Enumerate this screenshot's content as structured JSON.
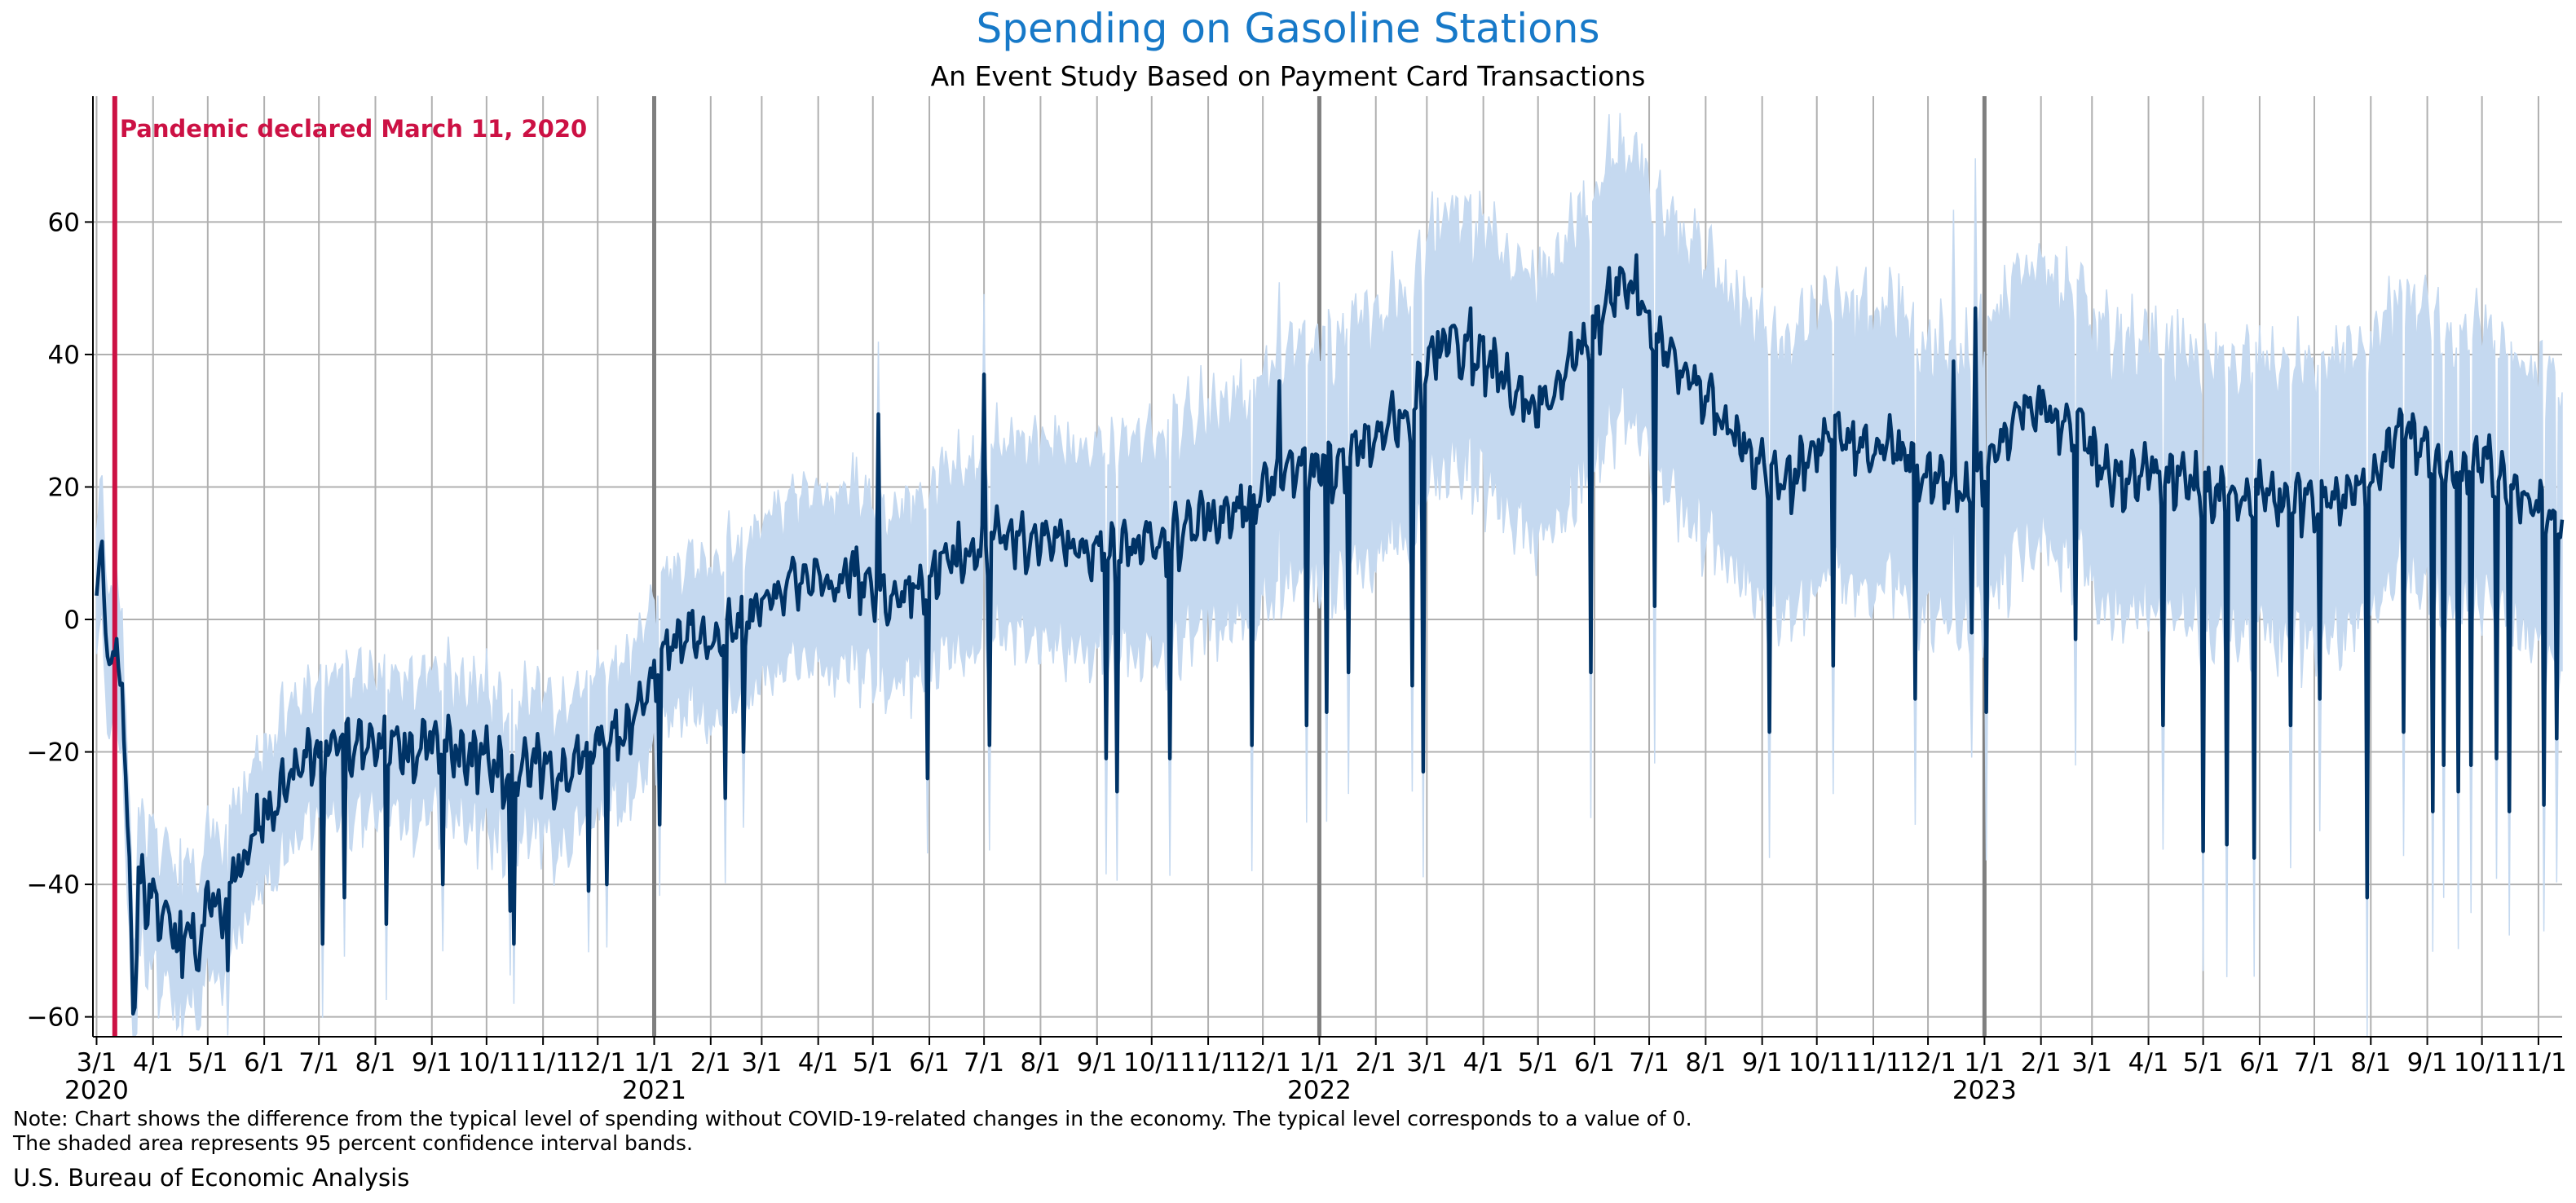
{
  "colors": {
    "title": "#1779c8",
    "line": "#003366",
    "band": "#c5d9f0",
    "event": "#cc1144",
    "grid": "#b0b0b0",
    "year_divider": "#7f7f7f"
  },
  "chart_data": {
    "type": "line",
    "title": "Spending on Gasoline Stations",
    "subtitle": "An Event Study Based on Payment Card Transactions",
    "xlabel": "",
    "ylabel": "",
    "x_range": [
      "2020-02-28",
      "2023-11-14"
    ],
    "ylim": [
      -63,
      79
    ],
    "yticks": [
      "60",
      "40",
      "20",
      "0",
      "−20",
      "−40",
      "−60"
    ],
    "ytick_values": [
      60,
      40,
      20,
      0,
      -20,
      -40,
      -60
    ],
    "xticks": [
      {
        "date": "2020-03-01",
        "label": "3/1",
        "year": "2020"
      },
      {
        "date": "2020-04-01",
        "label": "4/1"
      },
      {
        "date": "2020-05-01",
        "label": "5/1"
      },
      {
        "date": "2020-06-01",
        "label": "6/1"
      },
      {
        "date": "2020-07-01",
        "label": "7/1"
      },
      {
        "date": "2020-08-01",
        "label": "8/1"
      },
      {
        "date": "2020-09-01",
        "label": "9/1"
      },
      {
        "date": "2020-10-01",
        "label": "10/1"
      },
      {
        "date": "2020-11-01",
        "label": "11/1"
      },
      {
        "date": "2020-12-01",
        "label": "12/1"
      },
      {
        "date": "2021-01-01",
        "label": "1/1",
        "year": "2021",
        "divider": true
      },
      {
        "date": "2021-02-01",
        "label": "2/1"
      },
      {
        "date": "2021-03-01",
        "label": "3/1"
      },
      {
        "date": "2021-04-01",
        "label": "4/1"
      },
      {
        "date": "2021-05-01",
        "label": "5/1"
      },
      {
        "date": "2021-06-01",
        "label": "6/1"
      },
      {
        "date": "2021-07-01",
        "label": "7/1"
      },
      {
        "date": "2021-08-01",
        "label": "8/1"
      },
      {
        "date": "2021-09-01",
        "label": "9/1"
      },
      {
        "date": "2021-10-01",
        "label": "10/1"
      },
      {
        "date": "2021-11-01",
        "label": "11/1"
      },
      {
        "date": "2021-12-01",
        "label": "12/1"
      },
      {
        "date": "2022-01-01",
        "label": "1/1",
        "year": "2022",
        "divider": true
      },
      {
        "date": "2022-02-01",
        "label": "2/1"
      },
      {
        "date": "2022-03-01",
        "label": "3/1"
      },
      {
        "date": "2022-04-01",
        "label": "4/1"
      },
      {
        "date": "2022-05-01",
        "label": "5/1"
      },
      {
        "date": "2022-06-01",
        "label": "6/1"
      },
      {
        "date": "2022-07-01",
        "label": "7/1"
      },
      {
        "date": "2022-08-01",
        "label": "8/1"
      },
      {
        "date": "2022-09-01",
        "label": "9/1"
      },
      {
        "date": "2022-10-01",
        "label": "10/1"
      },
      {
        "date": "2022-11-01",
        "label": "11/1"
      },
      {
        "date": "2022-12-01",
        "label": "12/1"
      },
      {
        "date": "2023-01-01",
        "label": "1/1",
        "year": "2023",
        "divider": true
      },
      {
        "date": "2023-02-01",
        "label": "2/1"
      },
      {
        "date": "2023-03-01",
        "label": "3/1"
      },
      {
        "date": "2023-04-01",
        "label": "4/1"
      },
      {
        "date": "2023-05-01",
        "label": "5/1"
      },
      {
        "date": "2023-06-01",
        "label": "6/1"
      },
      {
        "date": "2023-07-01",
        "label": "7/1"
      },
      {
        "date": "2023-08-01",
        "label": "8/1"
      },
      {
        "date": "2023-09-01",
        "label": "9/1"
      },
      {
        "date": "2023-10-01",
        "label": "10/1"
      },
      {
        "date": "2023-11-01",
        "label": "11/1"
      }
    ],
    "event": {
      "date": "2020-03-11",
      "label": "Pandemic declared March 11, 2020"
    },
    "grid": true,
    "series": [
      {
        "kind": "line",
        "points": [
          [
            "2020-03-01",
            6
          ],
          [
            "2020-03-04",
            10
          ],
          [
            "2020-03-06",
            -4
          ],
          [
            "2020-03-09",
            -7
          ],
          [
            "2020-03-12",
            -6
          ],
          [
            "2020-03-15",
            -10
          ],
          [
            "2020-03-17",
            -24
          ],
          [
            "2020-03-19",
            -38
          ],
          [
            "2020-03-21",
            -55
          ],
          [
            "2020-03-22",
            -58
          ],
          [
            "2020-03-24",
            -40
          ],
          [
            "2020-03-27",
            -42
          ],
          [
            "2020-04-01",
            -43
          ],
          [
            "2020-04-05",
            -47
          ],
          [
            "2020-04-10",
            -45
          ],
          [
            "2020-04-15",
            -50
          ],
          [
            "2020-04-20",
            -44
          ],
          [
            "2020-04-25",
            -52
          ],
          [
            "2020-05-01",
            -42
          ],
          [
            "2020-05-08",
            -45
          ],
          [
            "2020-05-15",
            -40
          ],
          [
            "2020-05-22",
            -36
          ],
          [
            "2020-06-01",
            -30
          ],
          [
            "2020-06-10",
            -27
          ],
          [
            "2020-06-20",
            -22
          ],
          [
            "2020-07-01",
            -20
          ],
          [
            "2020-07-10",
            -18
          ],
          [
            "2020-07-20",
            -20
          ],
          [
            "2020-08-01",
            -19
          ],
          [
            "2020-08-10",
            -18
          ],
          [
            "2020-08-20",
            -21
          ],
          [
            "2020-09-01",
            -19
          ],
          [
            "2020-09-10",
            -20
          ],
          [
            "2020-09-20",
            -22
          ],
          [
            "2020-10-01",
            -21
          ],
          [
            "2020-10-10",
            -24
          ],
          [
            "2020-10-20",
            -23
          ],
          [
            "2020-11-01",
            -23
          ],
          [
            "2020-11-10",
            -24
          ],
          [
            "2020-11-20",
            -22
          ],
          [
            "2020-12-01",
            -19
          ],
          [
            "2020-12-10",
            -18
          ],
          [
            "2020-12-20",
            -17
          ],
          [
            "2021-01-01",
            -10
          ],
          [
            "2021-01-10",
            -5
          ],
          [
            "2021-01-20",
            -3
          ],
          [
            "2021-02-01",
            -4
          ],
          [
            "2021-02-10",
            -3
          ],
          [
            "2021-02-20",
            -1
          ],
          [
            "2021-03-01",
            2
          ],
          [
            "2021-03-10",
            3
          ],
          [
            "2021-03-20",
            5
          ],
          [
            "2021-04-01",
            6
          ],
          [
            "2021-04-10",
            4
          ],
          [
            "2021-04-20",
            7
          ],
          [
            "2021-05-01",
            3
          ],
          [
            "2021-05-10",
            2
          ],
          [
            "2021-05-20",
            4
          ],
          [
            "2021-06-01",
            6
          ],
          [
            "2021-06-10",
            8
          ],
          [
            "2021-06-20",
            9
          ],
          [
            "2021-07-01",
            11
          ],
          [
            "2021-07-10",
            12
          ],
          [
            "2021-07-20",
            11
          ],
          [
            "2021-08-01",
            12
          ],
          [
            "2021-08-10",
            11
          ],
          [
            "2021-08-20",
            10
          ],
          [
            "2021-09-01",
            9
          ],
          [
            "2021-09-10",
            10
          ],
          [
            "2021-09-20",
            10
          ],
          [
            "2021-10-01",
            12
          ],
          [
            "2021-10-10",
            11
          ],
          [
            "2021-10-20",
            13
          ],
          [
            "2021-11-01",
            15
          ],
          [
            "2021-11-10",
            14
          ],
          [
            "2021-11-20",
            16
          ],
          [
            "2021-12-01",
            18
          ],
          [
            "2021-12-10",
            20
          ],
          [
            "2021-12-20",
            22
          ],
          [
            "2022-01-01",
            22
          ],
          [
            "2022-01-10",
            22
          ],
          [
            "2022-01-20",
            25
          ],
          [
            "2022-02-01",
            27
          ],
          [
            "2022-02-10",
            29
          ],
          [
            "2022-02-20",
            30
          ],
          [
            "2022-03-01",
            38
          ],
          [
            "2022-03-10",
            42
          ],
          [
            "2022-03-20",
            40
          ],
          [
            "2022-04-01",
            39
          ],
          [
            "2022-04-10",
            36
          ],
          [
            "2022-04-20",
            32
          ],
          [
            "2022-05-01",
            33
          ],
          [
            "2022-05-10",
            32
          ],
          [
            "2022-05-20",
            38
          ],
          [
            "2022-06-01",
            43
          ],
          [
            "2022-06-10",
            48
          ],
          [
            "2022-06-20",
            51
          ],
          [
            "2022-07-01",
            44
          ],
          [
            "2022-07-10",
            40
          ],
          [
            "2022-07-20",
            37
          ],
          [
            "2022-08-01",
            33
          ],
          [
            "2022-08-10",
            29
          ],
          [
            "2022-08-20",
            26
          ],
          [
            "2022-09-01",
            22
          ],
          [
            "2022-09-10",
            20
          ],
          [
            "2022-09-20",
            21
          ],
          [
            "2022-10-01",
            26
          ],
          [
            "2022-10-10",
            28
          ],
          [
            "2022-10-20",
            26
          ],
          [
            "2022-11-01",
            25
          ],
          [
            "2022-11-10",
            26
          ],
          [
            "2022-11-20",
            24
          ],
          [
            "2022-12-01",
            22
          ],
          [
            "2022-12-10",
            20
          ],
          [
            "2022-12-20",
            18
          ],
          [
            "2023-01-01",
            22
          ],
          [
            "2023-01-10",
            27
          ],
          [
            "2023-01-20",
            31
          ],
          [
            "2023-02-01",
            32
          ],
          [
            "2023-02-10",
            30
          ],
          [
            "2023-02-20",
            29
          ],
          [
            "2023-03-01",
            24
          ],
          [
            "2023-03-10",
            21
          ],
          [
            "2023-03-20",
            20
          ],
          [
            "2023-04-01",
            22
          ],
          [
            "2023-04-10",
            20
          ],
          [
            "2023-04-20",
            21
          ],
          [
            "2023-05-01",
            19
          ],
          [
            "2023-05-10",
            17
          ],
          [
            "2023-05-20",
            18
          ],
          [
            "2023-06-01",
            19
          ],
          [
            "2023-06-10",
            18
          ],
          [
            "2023-06-20",
            17
          ],
          [
            "2023-07-01",
            18
          ],
          [
            "2023-07-10",
            17
          ],
          [
            "2023-07-20",
            18
          ],
          [
            "2023-08-01",
            21
          ],
          [
            "2023-08-10",
            25
          ],
          [
            "2023-08-20",
            27
          ],
          [
            "2023-09-01",
            24
          ],
          [
            "2023-09-10",
            21
          ],
          [
            "2023-09-20",
            22
          ],
          [
            "2023-10-01",
            23
          ],
          [
            "2023-10-10",
            21
          ],
          [
            "2023-10-20",
            18
          ],
          [
            "2023-11-01",
            16
          ],
          [
            "2023-11-08",
            14
          ],
          [
            "2023-11-14",
            12
          ]
        ],
        "dips": [
          [
            "2020-04-17",
            -54
          ],
          [
            "2020-05-12",
            -53
          ],
          [
            "2020-07-03",
            -49
          ],
          [
            "2020-07-15",
            -42
          ],
          [
            "2020-08-07",
            -46
          ],
          [
            "2020-09-07",
            -40
          ],
          [
            "2020-10-14",
            -44
          ],
          [
            "2020-10-16",
            -49
          ],
          [
            "2020-11-26",
            -41
          ],
          [
            "2020-12-06",
            -40
          ],
          [
            "2021-01-04",
            -31
          ],
          [
            "2021-02-09",
            -27
          ],
          [
            "2021-02-19",
            -20
          ],
          [
            "2021-05-31",
            -24
          ],
          [
            "2021-07-04",
            -19
          ],
          [
            "2021-09-06",
            -21
          ],
          [
            "2021-09-12",
            -26
          ],
          [
            "2021-10-11",
            -21
          ],
          [
            "2021-11-25",
            -19
          ],
          [
            "2021-12-25",
            -16
          ],
          [
            "2022-01-05",
            -14
          ],
          [
            "2022-01-17",
            -8
          ],
          [
            "2022-02-21",
            -10
          ],
          [
            "2022-02-27",
            -23
          ],
          [
            "2022-05-30",
            -8
          ],
          [
            "2022-07-04",
            2
          ],
          [
            "2022-09-05",
            -17
          ],
          [
            "2022-10-10",
            -7
          ],
          [
            "2022-11-24",
            -12
          ],
          [
            "2022-12-25",
            -2
          ],
          [
            "2023-01-02",
            -14
          ],
          [
            "2023-02-20",
            -3
          ],
          [
            "2023-04-09",
            -16
          ],
          [
            "2023-05-01",
            -35
          ],
          [
            "2023-05-14",
            -34
          ],
          [
            "2023-05-29",
            -36
          ],
          [
            "2023-06-18",
            -16
          ],
          [
            "2023-07-04",
            -12
          ],
          [
            "2023-07-30",
            -42
          ],
          [
            "2023-08-19",
            -17
          ],
          [
            "2023-09-04",
            -29
          ],
          [
            "2023-09-10",
            -22
          ],
          [
            "2023-09-18",
            -26
          ],
          [
            "2023-09-25",
            -22
          ],
          [
            "2023-10-09",
            -21
          ],
          [
            "2023-10-16",
            -29
          ],
          [
            "2023-11-04",
            -28
          ],
          [
            "2023-11-11",
            -18
          ]
        ],
        "spikes": [
          [
            "2021-05-04",
            31
          ],
          [
            "2021-07-01",
            37
          ],
          [
            "2021-12-10",
            36
          ],
          [
            "2022-03-25",
            47
          ],
          [
            "2022-06-24",
            55
          ],
          [
            "2022-12-15",
            39
          ],
          [
            "2022-12-27",
            47
          ]
        ]
      },
      {
        "kind": "band",
        "label": "95 percent confidence interval bands",
        "half_width_note": "about ±10 in 2020, widening to about ±20 in late 2022 and 2023"
      }
    ]
  },
  "note_lines": [
    "Note: Chart shows the difference from the typical level of spending without COVID-19-related changes in the economy. The typical level corresponds to a value of 0.",
    "The shaded area represents 95 percent confidence interval bands."
  ],
  "source": "U.S. Bureau of Economic Analysis"
}
